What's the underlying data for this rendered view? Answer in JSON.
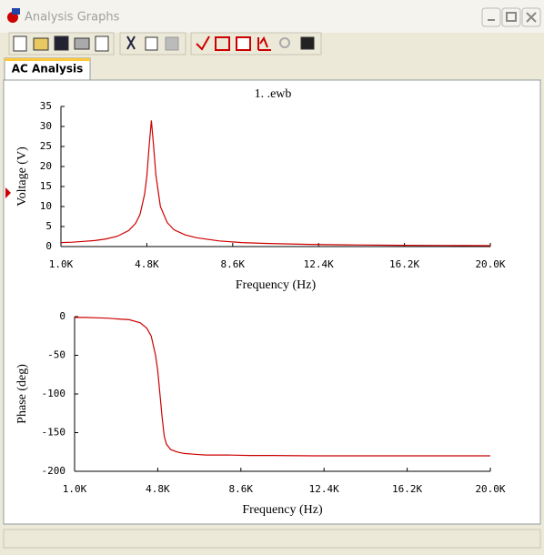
{
  "window": {
    "title": "Analysis Graphs",
    "tab": "AC Analysis"
  },
  "chart_data": [
    {
      "type": "line",
      "title": "1. .ewb",
      "xlabel": "Frequency (Hz)",
      "ylabel": "Voltage (V)",
      "color": "#cc0000",
      "grid": false,
      "x": [
        1000,
        1500,
        2000,
        2500,
        3000,
        3500,
        4000,
        4300,
        4500,
        4700,
        4800,
        4900,
        5000,
        5100,
        5200,
        5400,
        5700,
        6000,
        6500,
        7000,
        8000,
        9000,
        10000,
        12000,
        14000,
        16000,
        18000,
        20000
      ],
      "values": [
        1.0,
        1.1,
        1.3,
        1.5,
        1.9,
        2.6,
        4.0,
        5.8,
        8.0,
        13,
        17.5,
        25,
        31.5,
        25,
        18,
        10,
        6,
        4.2,
        2.9,
        2.2,
        1.4,
        1.0,
        0.8,
        0.55,
        0.4,
        0.32,
        0.27,
        0.23
      ],
      "xlim": [
        1000,
        20000
      ],
      "xticks": [
        {
          "value": 1000,
          "label": "1.0K"
        },
        {
          "value": 4800,
          "label": "4.8K"
        },
        {
          "value": 8600,
          "label": "8.6K"
        },
        {
          "value": 12400,
          "label": "12.4K"
        },
        {
          "value": 16200,
          "label": "16.2K"
        },
        {
          "value": 20000,
          "label": "20.0K"
        }
      ],
      "ylim": [
        0,
        35
      ],
      "yticks": [
        0,
        5,
        10,
        15,
        20,
        25,
        30,
        35
      ]
    },
    {
      "type": "line",
      "xlabel": "Frequency (Hz)",
      "ylabel": "Phase (deg)",
      "color": "#cc0000",
      "grid": false,
      "x": [
        1000,
        1500,
        2000,
        2500,
        3000,
        3500,
        4000,
        4300,
        4500,
        4700,
        4800,
        4900,
        5000,
        5100,
        5200,
        5400,
        5700,
        6000,
        6500,
        7000,
        8000,
        9000,
        10000,
        12000,
        14000,
        16000,
        18000,
        20000
      ],
      "values": [
        -1,
        -1,
        -1.5,
        -2,
        -3,
        -4,
        -8,
        -15,
        -25,
        -50,
        -70,
        -100,
        -130,
        -155,
        -165,
        -172,
        -175,
        -177,
        -178,
        -179,
        -179,
        -179.5,
        -179.5,
        -180,
        -180,
        -180,
        -180,
        -180
      ],
      "xlim": [
        1000,
        20000
      ],
      "xticks": [
        {
          "value": 1000,
          "label": "1.0K"
        },
        {
          "value": 4800,
          "label": "4.8K"
        },
        {
          "value": 8600,
          "label": "8.6K"
        },
        {
          "value": 12400,
          "label": "12.4K"
        },
        {
          "value": 16200,
          "label": "16.2K"
        },
        {
          "value": 20000,
          "label": "20.0K"
        }
      ],
      "ylim": [
        -200,
        0
      ],
      "yticks": [
        0,
        -50,
        -100,
        -150,
        -200
      ]
    }
  ]
}
